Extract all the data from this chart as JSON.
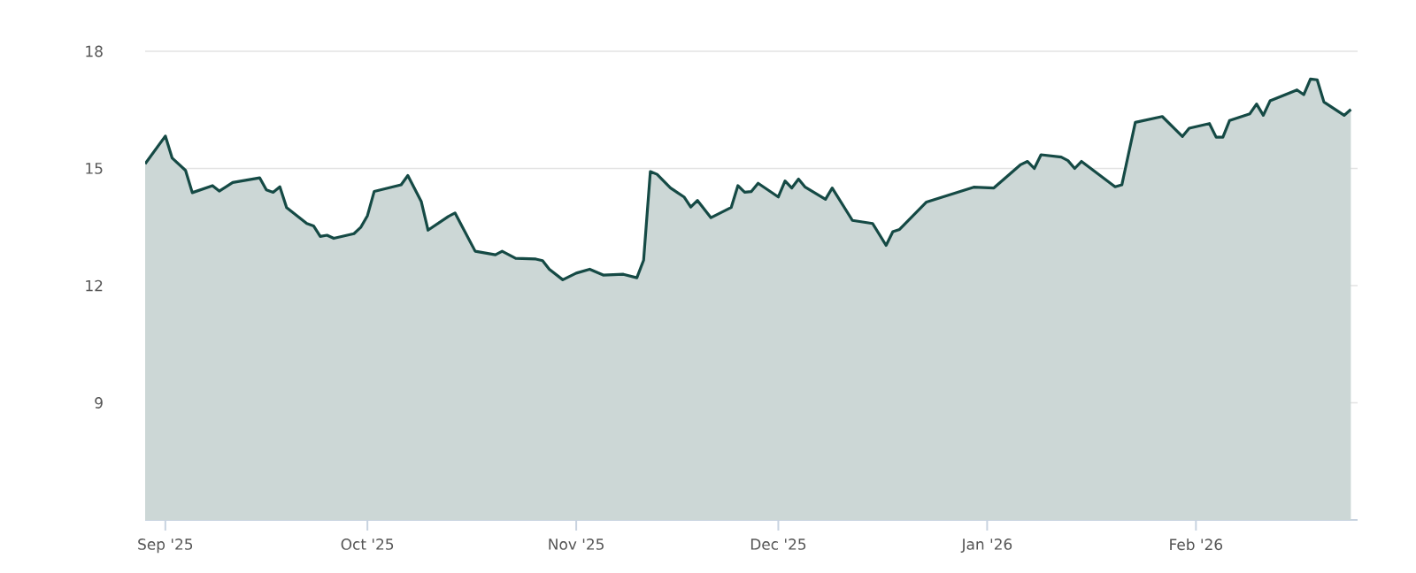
{
  "chart_data": {
    "type": "area",
    "color": "#154a45",
    "line_style": "solid",
    "grid": "y",
    "xlim": [
      "2025-08-29",
      "2026-02-25"
    ],
    "ylim": [
      6,
      18
    ],
    "yticks": [
      9,
      12,
      15,
      18
    ],
    "xticks": [
      {
        "value": "2025-09-01",
        "label": "Sep '25"
      },
      {
        "value": "2025-10-01",
        "label": "Oct '25"
      },
      {
        "value": "2025-11-01",
        "label": "Nov '25"
      },
      {
        "value": "2025-12-01",
        "label": "Dec '25"
      },
      {
        "value": "2026-01-01",
        "label": "Jan '26"
      },
      {
        "value": "2026-02-01",
        "label": "Feb '26"
      }
    ],
    "x": [
      "2025-08-29",
      "2025-09-01",
      "2025-09-02",
      "2025-09-04",
      "2025-09-05",
      "2025-09-08",
      "2025-09-09",
      "2025-09-11",
      "2025-09-15",
      "2025-09-16",
      "2025-09-17",
      "2025-09-18",
      "2025-09-19",
      "2025-09-22",
      "2025-09-23",
      "2025-09-24",
      "2025-09-25",
      "2025-09-26",
      "2025-09-29",
      "2025-09-30",
      "2025-10-01",
      "2025-10-02",
      "2025-10-06",
      "2025-10-07",
      "2025-10-09",
      "2025-10-10",
      "2025-10-13",
      "2025-10-14",
      "2025-10-17",
      "2025-10-20",
      "2025-10-21",
      "2025-10-23",
      "2025-10-26",
      "2025-10-27",
      "2025-10-28",
      "2025-10-30",
      "2025-11-01",
      "2025-11-03",
      "2025-11-05",
      "2025-11-08",
      "2025-11-10",
      "2025-11-11",
      "2025-11-12",
      "2025-11-13",
      "2025-11-15",
      "2025-11-17",
      "2025-11-18",
      "2025-11-19",
      "2025-11-21",
      "2025-11-24",
      "2025-11-25",
      "2025-11-26",
      "2025-11-27",
      "2025-11-28",
      "2025-12-01",
      "2025-12-02",
      "2025-12-03",
      "2025-12-04",
      "2025-12-05",
      "2025-12-08",
      "2025-12-09",
      "2025-12-12",
      "2025-12-15",
      "2025-12-17",
      "2025-12-18",
      "2025-12-19",
      "2025-12-23",
      "2025-12-30",
      "2026-01-02",
      "2026-01-06",
      "2026-01-07",
      "2026-01-08",
      "2026-01-09",
      "2026-01-12",
      "2026-01-13",
      "2026-01-14",
      "2026-01-15",
      "2026-01-20",
      "2026-01-21",
      "2026-01-23",
      "2026-01-27",
      "2026-01-30",
      "2026-01-31",
      "2026-02-03",
      "2026-02-04",
      "2026-02-05",
      "2026-02-06",
      "2026-02-09",
      "2026-02-10",
      "2026-02-11",
      "2026-02-12",
      "2026-02-16",
      "2026-02-17",
      "2026-02-18",
      "2026-02-19",
      "2026-02-20",
      "2026-02-23",
      "2026-02-24"
    ],
    "values": [
      15.12,
      15.83,
      15.27,
      14.95,
      14.38,
      14.56,
      14.42,
      14.64,
      14.76,
      14.45,
      14.39,
      14.53,
      14.0,
      13.59,
      13.53,
      13.26,
      13.29,
      13.21,
      13.33,
      13.49,
      13.79,
      14.41,
      14.58,
      14.82,
      14.15,
      13.42,
      13.77,
      13.86,
      12.88,
      12.79,
      12.88,
      12.7,
      12.68,
      12.64,
      12.42,
      12.15,
      12.32,
      12.42,
      12.27,
      12.29,
      12.2,
      12.65,
      14.92,
      14.85,
      14.5,
      14.27,
      14.01,
      14.18,
      13.74,
      14.0,
      14.56,
      14.39,
      14.41,
      14.62,
      14.27,
      14.68,
      14.5,
      14.73,
      14.52,
      14.21,
      14.5,
      13.67,
      13.59,
      13.03,
      13.38,
      13.44,
      14.14,
      14.52,
      14.5,
      15.1,
      15.18,
      15.0,
      15.35,
      15.29,
      15.2,
      15.0,
      15.18,
      14.53,
      14.58,
      16.18,
      16.33,
      15.82,
      16.03,
      16.15,
      15.8,
      15.8,
      16.23,
      16.4,
      16.65,
      16.36,
      16.73,
      17.01,
      16.89,
      17.29,
      17.27,
      16.7,
      16.36,
      16.51
    ]
  }
}
